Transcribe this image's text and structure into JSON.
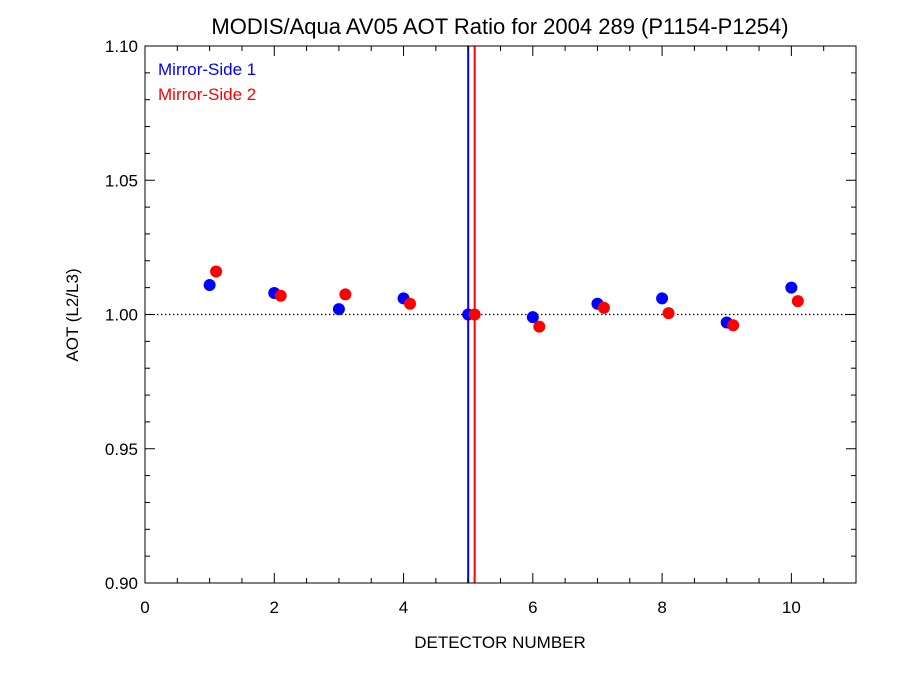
{
  "chart_data": {
    "type": "scatter",
    "title": "MODIS/Aqua AV05 AOT Ratio for 2004 289 (P1154-P1254)",
    "xlabel": "DETECTOR NUMBER",
    "ylabel": "AOT (L2/L3)",
    "xlim": [
      0,
      11
    ],
    "ylim": [
      0.9,
      1.1
    ],
    "x_ticks": [
      0,
      2,
      4,
      6,
      8,
      10
    ],
    "x_tick_labels": [
      "0",
      "2",
      "4",
      "6",
      "8",
      "10"
    ],
    "y_ticks": [
      0.9,
      0.95,
      1.0,
      1.05,
      1.1
    ],
    "y_tick_labels": [
      "0.90",
      "0.95",
      "1.00",
      "1.05",
      "1.10"
    ],
    "reference_line": {
      "y": 1.0,
      "style": "dotted"
    },
    "vertical_lines": [
      {
        "x": 5.0,
        "color": "#0000ff"
      },
      {
        "x": 5.1,
        "color": "#ff0000"
      }
    ],
    "legend_position": "top-left",
    "series": [
      {
        "name": "Mirror-Side 1",
        "color": "#0000ff",
        "x": [
          1,
          2,
          3,
          4,
          5,
          6,
          7,
          8,
          9,
          10
        ],
        "y": [
          1.011,
          1.008,
          1.002,
          1.006,
          1.0,
          0.999,
          1.004,
          1.006,
          0.997,
          1.01
        ]
      },
      {
        "name": "Mirror-Side 2",
        "color": "#ff0000",
        "x": [
          1.1,
          2.1,
          3.1,
          4.1,
          5.1,
          6.1,
          7.1,
          8.1,
          9.1,
          10.1
        ],
        "y": [
          1.016,
          1.007,
          1.0075,
          1.004,
          1.0,
          0.9955,
          1.0025,
          1.0005,
          0.996,
          1.005
        ]
      }
    ]
  }
}
